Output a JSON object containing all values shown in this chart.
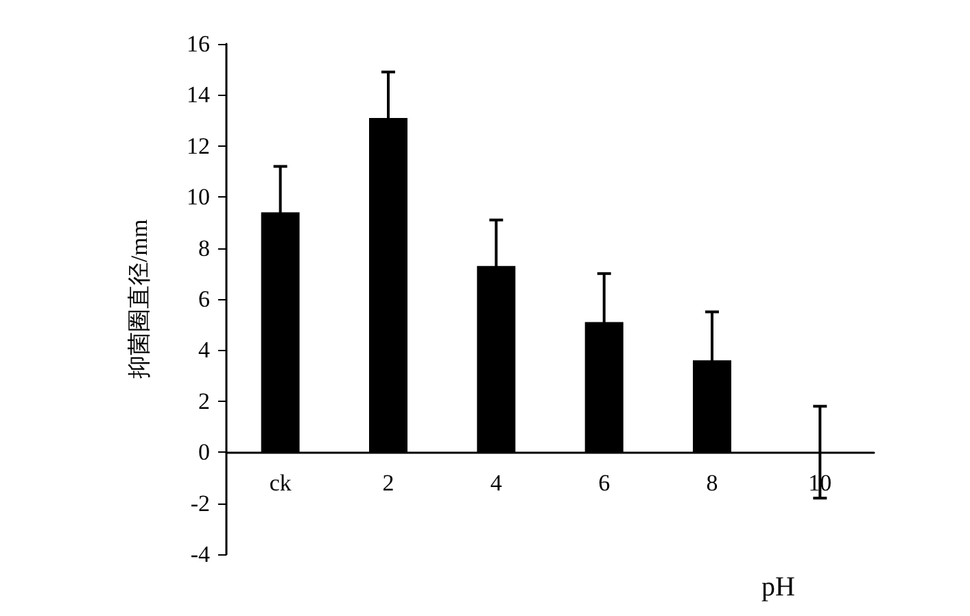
{
  "chart_data": {
    "type": "bar",
    "xlabel": "pH",
    "ylabel": "抑菌圈直径/mm",
    "categories": [
      "ck",
      "2",
      "4",
      "6",
      "8",
      "10"
    ],
    "values": [
      9.4,
      13.1,
      7.3,
      5.1,
      3.6,
      0
    ],
    "errors": [
      1.8,
      1.8,
      1.8,
      1.9,
      1.9,
      1.8
    ],
    "color": "#000000",
    "ylim": [
      -4,
      16
    ],
    "yticks": [
      -4,
      -2,
      0,
      2,
      4,
      6,
      8,
      10,
      12,
      14,
      16
    ],
    "grid": false
  }
}
